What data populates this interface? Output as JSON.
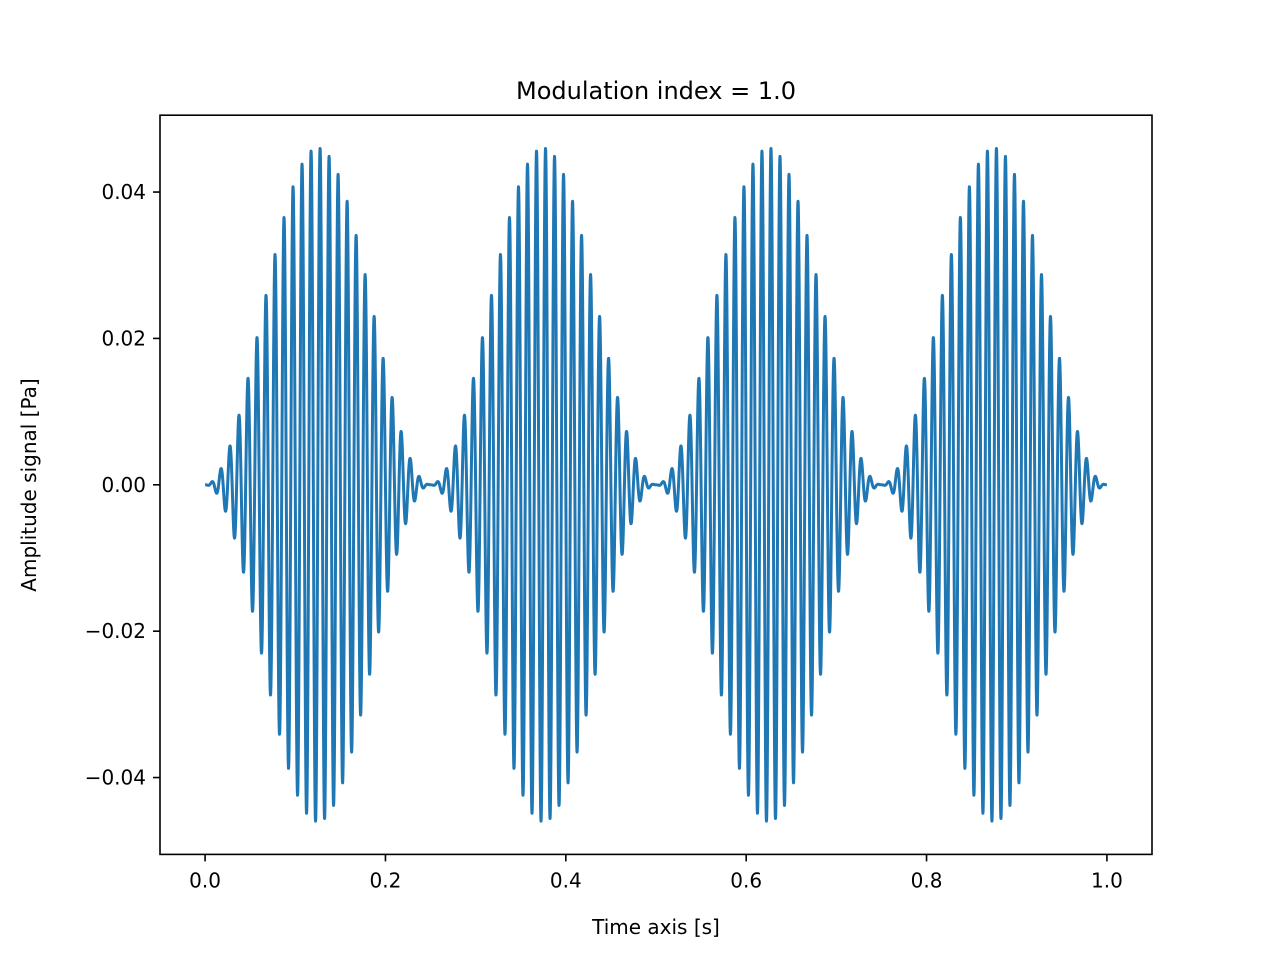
{
  "chart_data": {
    "type": "line",
    "title": "Modulation index = 1.0",
    "xlabel": "Time axis [s]",
    "ylabel": "Amplitude signal [Pa]",
    "xlim": [
      -0.05,
      1.05
    ],
    "ylim": [
      -0.0505,
      0.0505
    ],
    "xticks": [
      0.0,
      0.2,
      0.4,
      0.6,
      0.8,
      1.0
    ],
    "xtick_labels": [
      "0.0",
      "0.2",
      "0.4",
      "0.6",
      "0.8",
      "1.0"
    ],
    "yticks": [
      -0.04,
      -0.02,
      0.0,
      0.02,
      0.04
    ],
    "ytick_labels": [
      "−0.04",
      "−0.02",
      "0.00",
      "0.02",
      "0.04"
    ],
    "grid": false,
    "line_color": "#1f77b4",
    "series": [
      {
        "x_start": 0.0,
        "x_end": 1.0,
        "carrier_frequency_hz": 100,
        "modulation_frequency_hz": 4,
        "carrier_amplitude": 0.023,
        "modulation_index": 1.0
      }
    ]
  }
}
